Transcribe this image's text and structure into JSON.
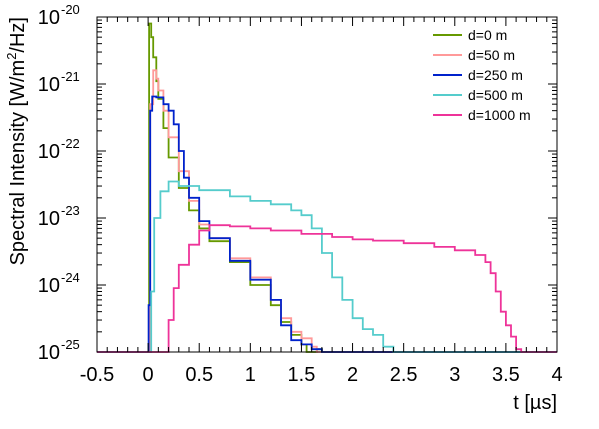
{
  "chart_data": {
    "type": "line",
    "step": true,
    "title": "",
    "xlabel": "t [µs]",
    "ylabel_parts": [
      "Spectral Intensity [W/m",
      "2",
      "/Hz]"
    ],
    "xlim": [
      -0.5,
      4
    ],
    "ylim": [
      1e-25,
      1e-20
    ],
    "yscale": "log",
    "grid": false,
    "legend_placement": "top-right",
    "x_ticks": [
      -0.5,
      0,
      0.5,
      1,
      1.5,
      2,
      2.5,
      3,
      3.5,
      4
    ],
    "x_tick_labels": [
      "-0.5",
      "0",
      "0.5",
      "1",
      "1.5",
      "2",
      "2.5",
      "3",
      "3.5",
      "4"
    ],
    "y_ticks": [
      -25,
      -24,
      -23,
      -22,
      -21,
      -20
    ],
    "y_tick_base": "10",
    "y_tick_exponents": [
      "-25",
      "-24",
      "-23",
      "-22",
      "-21",
      "-20"
    ],
    "series": [
      {
        "name": "d=0 m",
        "color": "#669900",
        "points": [
          [
            -0.5,
            1e-25
          ],
          [
            0,
            1e-25
          ],
          [
            0.01,
            8e-21
          ],
          [
            0.03,
            5e-21
          ],
          [
            0.05,
            2.5e-21
          ],
          [
            0.08,
            1.1e-21
          ],
          [
            0.1,
            6e-22
          ],
          [
            0.15,
            2.2e-22
          ],
          [
            0.2,
            8e-23
          ],
          [
            0.3,
            2.8e-23
          ],
          [
            0.4,
            1.3e-23
          ],
          [
            0.5,
            7e-24
          ],
          [
            0.6,
            4.5e-24
          ],
          [
            0.8,
            2.2e-24
          ],
          [
            1.0,
            1e-24
          ],
          [
            1.2,
            5e-25
          ],
          [
            1.3,
            2.8e-25
          ],
          [
            1.4,
            1.8e-25
          ],
          [
            1.5,
            1.3e-25
          ],
          [
            1.55,
            1e-25
          ],
          [
            1.65,
            1.1e-25
          ],
          [
            1.7,
            1e-25
          ],
          [
            4,
            1e-25
          ]
        ]
      },
      {
        "name": "d=50 m",
        "color": "#ff9999",
        "points": [
          [
            -0.5,
            1e-25
          ],
          [
            0,
            1e-25
          ],
          [
            0.02,
            5e-22
          ],
          [
            0.05,
            1.6e-21
          ],
          [
            0.08,
            1.2e-21
          ],
          [
            0.1,
            8e-22
          ],
          [
            0.15,
            4e-22
          ],
          [
            0.2,
            1.6e-22
          ],
          [
            0.3,
            5e-23
          ],
          [
            0.4,
            1.8e-23
          ],
          [
            0.5,
            8e-24
          ],
          [
            0.6,
            5e-24
          ],
          [
            0.8,
            2.5e-24
          ],
          [
            1.0,
            1.3e-24
          ],
          [
            1.2,
            6e-25
          ],
          [
            1.3,
            3.2e-25
          ],
          [
            1.4,
            2e-25
          ],
          [
            1.5,
            1.6e-25
          ],
          [
            1.6,
            1.2e-25
          ],
          [
            1.65,
            1e-25
          ],
          [
            4,
            1e-25
          ]
        ]
      },
      {
        "name": "d=250 m",
        "color": "#0022cc",
        "points": [
          [
            -0.5,
            1e-25
          ],
          [
            0,
            1e-25
          ],
          [
            0.005,
            5e-25
          ],
          [
            0.02,
            4e-22
          ],
          [
            0.04,
            6.5e-22
          ],
          [
            0.08,
            6.3e-22
          ],
          [
            0.15,
            5e-22
          ],
          [
            0.2,
            4e-22
          ],
          [
            0.25,
            2.5e-22
          ],
          [
            0.3,
            1e-22
          ],
          [
            0.35,
            4e-23
          ],
          [
            0.4,
            2e-23
          ],
          [
            0.5,
            9e-24
          ],
          [
            0.6,
            5e-24
          ],
          [
            0.8,
            2.3e-24
          ],
          [
            1.0,
            1.2e-24
          ],
          [
            1.2,
            6e-25
          ],
          [
            1.3,
            2.5e-25
          ],
          [
            1.4,
            1.5e-25
          ],
          [
            1.5,
            1.3e-25
          ],
          [
            1.6,
            1.1e-25
          ],
          [
            1.7,
            1e-25
          ],
          [
            4,
            1e-25
          ]
        ]
      },
      {
        "name": "d=500 m",
        "color": "#55cccc",
        "points": [
          [
            -0.5,
            1e-25
          ],
          [
            0,
            1e-25
          ],
          [
            0.03,
            8e-25
          ],
          [
            0.06,
            1e-23
          ],
          [
            0.12,
            2.5e-23
          ],
          [
            0.2,
            3.5e-23
          ],
          [
            0.3,
            3e-23
          ],
          [
            0.5,
            2.6e-23
          ],
          [
            0.8,
            2.1e-23
          ],
          [
            1.0,
            1.8e-23
          ],
          [
            1.2,
            1.6e-23
          ],
          [
            1.4,
            1.3e-23
          ],
          [
            1.5,
            1.1e-23
          ],
          [
            1.6,
            7e-24
          ],
          [
            1.7,
            3e-24
          ],
          [
            1.8,
            1.3e-24
          ],
          [
            1.9,
            6e-25
          ],
          [
            2.0,
            3.2e-25
          ],
          [
            2.1,
            2.2e-25
          ],
          [
            2.2,
            1.8e-25
          ],
          [
            2.3,
            1.2e-25
          ],
          [
            2.4,
            1e-25
          ],
          [
            4,
            1e-25
          ]
        ]
      },
      {
        "name": "d=1000 m",
        "color": "#ee3399",
        "points": [
          [
            -0.5,
            1e-25
          ],
          [
            0.15,
            1e-25
          ],
          [
            0.2,
            3e-25
          ],
          [
            0.25,
            9e-25
          ],
          [
            0.3,
            2e-24
          ],
          [
            0.4,
            4e-24
          ],
          [
            0.5,
            6.5e-24
          ],
          [
            0.6,
            7.8e-24
          ],
          [
            0.8,
            7.5e-24
          ],
          [
            1.0,
            7e-24
          ],
          [
            1.2,
            6.5e-24
          ],
          [
            1.5,
            5.8e-24
          ],
          [
            1.8,
            5.2e-24
          ],
          [
            2.0,
            4.8e-24
          ],
          [
            2.2,
            4.6e-24
          ],
          [
            2.5,
            4.2e-24
          ],
          [
            2.8,
            3.7e-24
          ],
          [
            3.0,
            3.3e-24
          ],
          [
            3.2,
            2.8e-24
          ],
          [
            3.3,
            2.2e-24
          ],
          [
            3.35,
            1.5e-24
          ],
          [
            3.4,
            8e-25
          ],
          [
            3.45,
            4e-25
          ],
          [
            3.5,
            2.5e-25
          ],
          [
            3.55,
            1.7e-25
          ],
          [
            3.6,
            1.1e-25
          ],
          [
            3.65,
            1e-25
          ],
          [
            4,
            1e-25
          ]
        ]
      }
    ]
  }
}
